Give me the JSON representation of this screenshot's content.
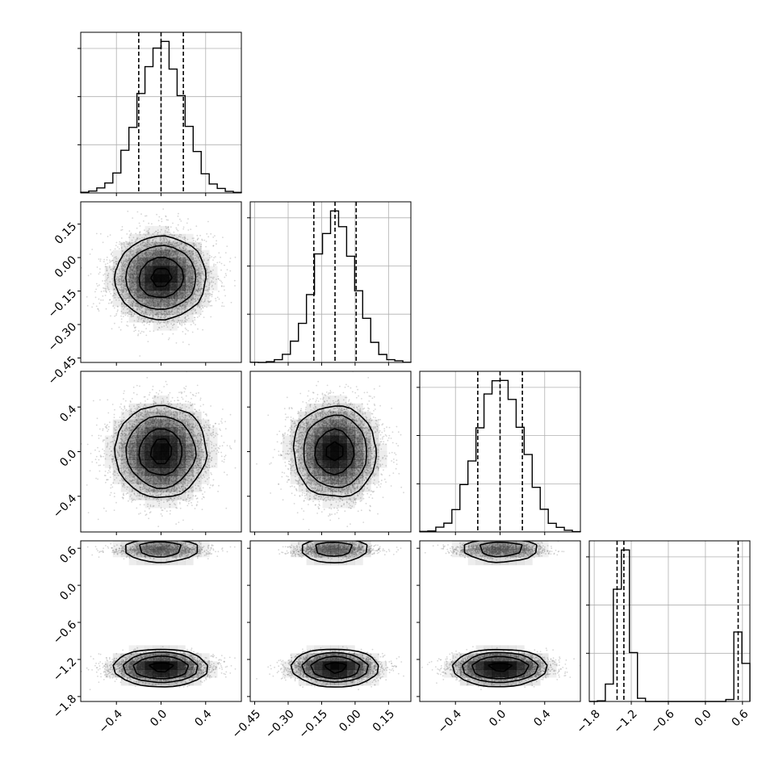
{
  "chart_data": {
    "type": "corner",
    "n_params": 4,
    "colors": {
      "line": "#000000",
      "grid": "#b0b0b0",
      "scatter": "#8a8a8a",
      "density": "#000000"
    },
    "grid": true,
    "params": [
      {
        "mean": 0.0,
        "std": 0.2,
        "range": [
          -0.72,
          0.72
        ],
        "ticks": [
          -0.4,
          0.0,
          0.4
        ],
        "tick_labels": [
          "−0.4",
          "0.0",
          "0.4"
        ],
        "quantiles": [
          -0.2,
          0.0,
          0.2
        ]
      },
      {
        "mean": -0.09,
        "std": 0.09,
        "range": [
          -0.47,
          0.25
        ],
        "ticks": [
          -0.45,
          -0.3,
          -0.15,
          0.0,
          0.15
        ],
        "tick_labels": [
          "−0.45",
          "−0.30",
          "−0.15",
          "0.00",
          "0.15"
        ],
        "quantiles": [
          -0.185,
          -0.09,
          0.005
        ]
      },
      {
        "mean": 0.0,
        "std": 0.2,
        "range": [
          -0.72,
          0.72
        ],
        "ticks": [
          -0.4,
          0.0,
          0.4
        ],
        "tick_labels": [
          "−0.4",
          "0.0",
          "0.4"
        ],
        "quantiles": [
          -0.2,
          0.0,
          0.2
        ]
      },
      {
        "mixture": [
          {
            "weight": 0.75,
            "mean": -1.33,
            "std": 0.1
          },
          {
            "weight": 0.25,
            "mean": 0.57,
            "std": 0.05
          }
        ],
        "range": [
          -1.88,
          0.72
        ],
        "ticks": [
          -1.8,
          -1.2,
          -0.6,
          0.0,
          0.6
        ],
        "tick_labels": [
          "−1.8",
          "−1.2",
          "−0.6",
          "0.0",
          "0.6"
        ],
        "quantiles": [
          -1.43,
          -1.32,
          0.53
        ]
      }
    ]
  }
}
